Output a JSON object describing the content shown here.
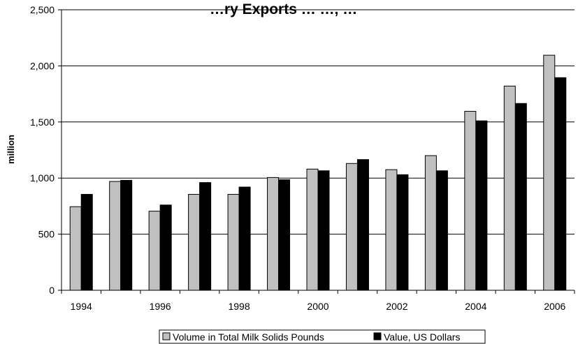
{
  "chart_data": {
    "type": "bar",
    "title": "…ry Exports … …, …",
    "ylabel": "million",
    "xlabel": "",
    "ylim": [
      0,
      2500
    ],
    "yticks": [
      0,
      500,
      1000,
      1500,
      2000,
      2500
    ],
    "ytick_labels": [
      "0",
      "500",
      "1,000",
      "1,500",
      "2,000",
      "2,500"
    ],
    "categories": [
      "1994",
      "1995",
      "1996",
      "1997",
      "1998",
      "1999",
      "2000",
      "2001",
      "2002",
      "2003",
      "2004",
      "2005",
      "2006"
    ],
    "xtick_labels_shown": [
      "1994",
      "1996",
      "1998",
      "2000",
      "2002",
      "2004",
      "2006"
    ],
    "series": [
      {
        "name": "Volume in Total Milk Solids Pounds",
        "color": "#c0c0c0",
        "values": [
          745,
          970,
          705,
          855,
          855,
          1005,
          1080,
          1130,
          1075,
          1200,
          1595,
          1820,
          2095
        ]
      },
      {
        "name": "Value, US Dollars",
        "color": "#000000",
        "values": [
          855,
          980,
          760,
          960,
          920,
          985,
          1065,
          1165,
          1030,
          1065,
          1510,
          1665,
          1895
        ]
      }
    ],
    "grid": true,
    "legend": "bottom"
  }
}
